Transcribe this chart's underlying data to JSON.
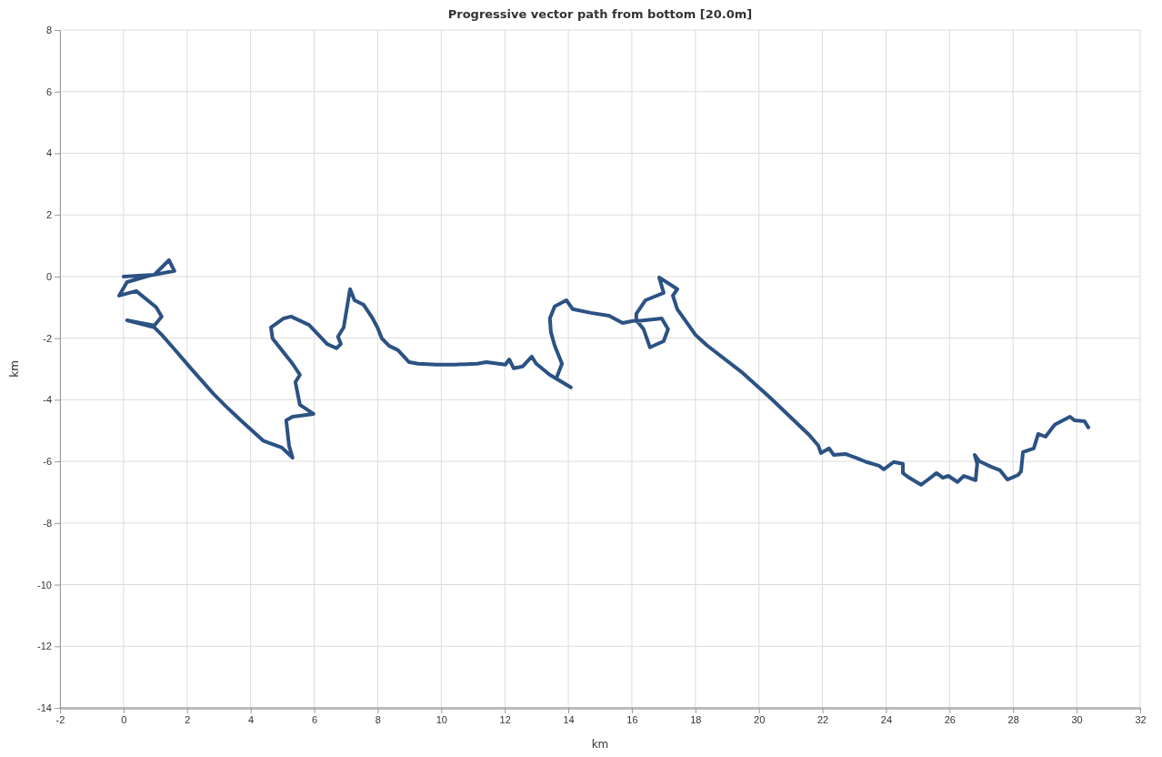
{
  "chart_data": {
    "type": "line",
    "title": "Progressive vector path from bottom [20.0m]",
    "xlabel": "km",
    "ylabel": "km",
    "xlim": [
      -2,
      32
    ],
    "xticks": [
      -2,
      0,
      2,
      4,
      6,
      8,
      10,
      12,
      14,
      16,
      18,
      20,
      22,
      24,
      26,
      28,
      30,
      32
    ],
    "ylim": [
      -14,
      8
    ],
    "yticks": [
      -14,
      -12,
      -10,
      -8,
      -6,
      -4,
      -2,
      0,
      2,
      4,
      6,
      8
    ],
    "grid": true,
    "marker": "none",
    "line_style": "solid",
    "series": [
      {
        "color": "#2b5283",
        "x": [
          0,
          0.97,
          1.43,
          1.6,
          0.83,
          0.11,
          -0.14,
          0.4,
          1.03,
          1.2,
          0.97,
          0.54,
          0.11,
          0.97,
          1.2,
          1.55,
          2.12,
          2.83,
          3.26,
          3.69,
          4.41,
          4.98,
          5.32,
          5.21,
          5.12,
          5.32,
          5.98,
          5.55,
          5.41,
          5.55,
          5.32,
          4.69,
          4.64,
          5.04,
          5.27,
          5.84,
          6.41,
          6.7,
          6.84,
          6.75,
          6.93,
          7.13,
          7.27,
          7.56,
          7.84,
          7.99,
          8.13,
          8.36,
          8.64,
          8.99,
          9.27,
          9.85,
          10.42,
          11.13,
          11.42,
          12.02,
          12.14,
          12.28,
          12.56,
          12.85,
          12.99,
          13.42,
          14.08,
          13.62,
          13.8,
          13.57,
          13.45,
          13.42,
          13.57,
          13.94,
          14.14,
          14.71,
          15.28,
          15.71,
          16.14,
          16.37,
          16.57,
          17,
          17.14,
          16.94,
          16.14,
          16.14,
          16.43,
          17,
          16.86,
          17.43,
          17.29,
          17.43,
          18,
          18.37,
          19.49,
          20.35,
          21.58,
          21.87,
          21.95,
          22.21,
          22.35,
          22.72,
          23.07,
          23.38,
          23.78,
          23.93,
          24.24,
          24.53,
          24.53,
          24.73,
          25.1,
          25.3,
          25.59,
          25.79,
          25.96,
          26.25,
          26.45,
          26.82,
          26.87,
          26.79,
          26.93,
          27.3,
          27.59,
          27.82,
          28.16,
          28.25,
          28.31,
          28.65,
          28.79,
          29.02,
          29.31,
          29.79,
          29.94,
          30.25,
          30.37
        ],
        "values": [
          0,
          0.06,
          0.53,
          0.18,
          0.03,
          -0.18,
          -0.62,
          -0.47,
          -1,
          -1.3,
          -1.59,
          -1.51,
          -1.42,
          -1.65,
          -1.89,
          -2.3,
          -2.98,
          -3.81,
          -4.25,
          -4.67,
          -5.34,
          -5.55,
          -5.88,
          -5.49,
          -4.67,
          -4.55,
          -4.46,
          -4.16,
          -3.43,
          -3.19,
          -2.83,
          -2.01,
          -1.65,
          -1.36,
          -1.3,
          -1.57,
          -2.19,
          -2.33,
          -2.19,
          -1.95,
          -1.65,
          -0.41,
          -0.77,
          -0.92,
          -1.36,
          -1.65,
          -2.01,
          -2.25,
          -2.39,
          -2.78,
          -2.83,
          -2.86,
          -2.86,
          -2.83,
          -2.78,
          -2.86,
          -2.69,
          -2.98,
          -2.92,
          -2.6,
          -2.83,
          -3.19,
          -3.6,
          -3.31,
          -2.83,
          -2.24,
          -1.8,
          -1.36,
          -0.97,
          -0.77,
          -1.06,
          -1.18,
          -1.27,
          -1.51,
          -1.42,
          -1.71,
          -2.3,
          -2.1,
          -1.71,
          -1.36,
          -1.45,
          -1.21,
          -0.77,
          -0.53,
          -0.03,
          -0.41,
          -0.62,
          -1.06,
          -1.89,
          -2.24,
          -3.13,
          -3.93,
          -5.14,
          -5.49,
          -5.73,
          -5.58,
          -5.79,
          -5.76,
          -5.89,
          -6.02,
          -6.14,
          -6.26,
          -6.02,
          -6.08,
          -6.38,
          -6.53,
          -6.76,
          -6.61,
          -6.38,
          -6.53,
          -6.47,
          -6.67,
          -6.47,
          -6.61,
          -6.08,
          -5.79,
          -5.99,
          -6.17,
          -6.29,
          -6.59,
          -6.44,
          -6.32,
          -5.7,
          -5.58,
          -5.11,
          -5.2,
          -4.81,
          -4.55,
          -4.67,
          -4.7,
          -4.9
        ]
      }
    ]
  }
}
